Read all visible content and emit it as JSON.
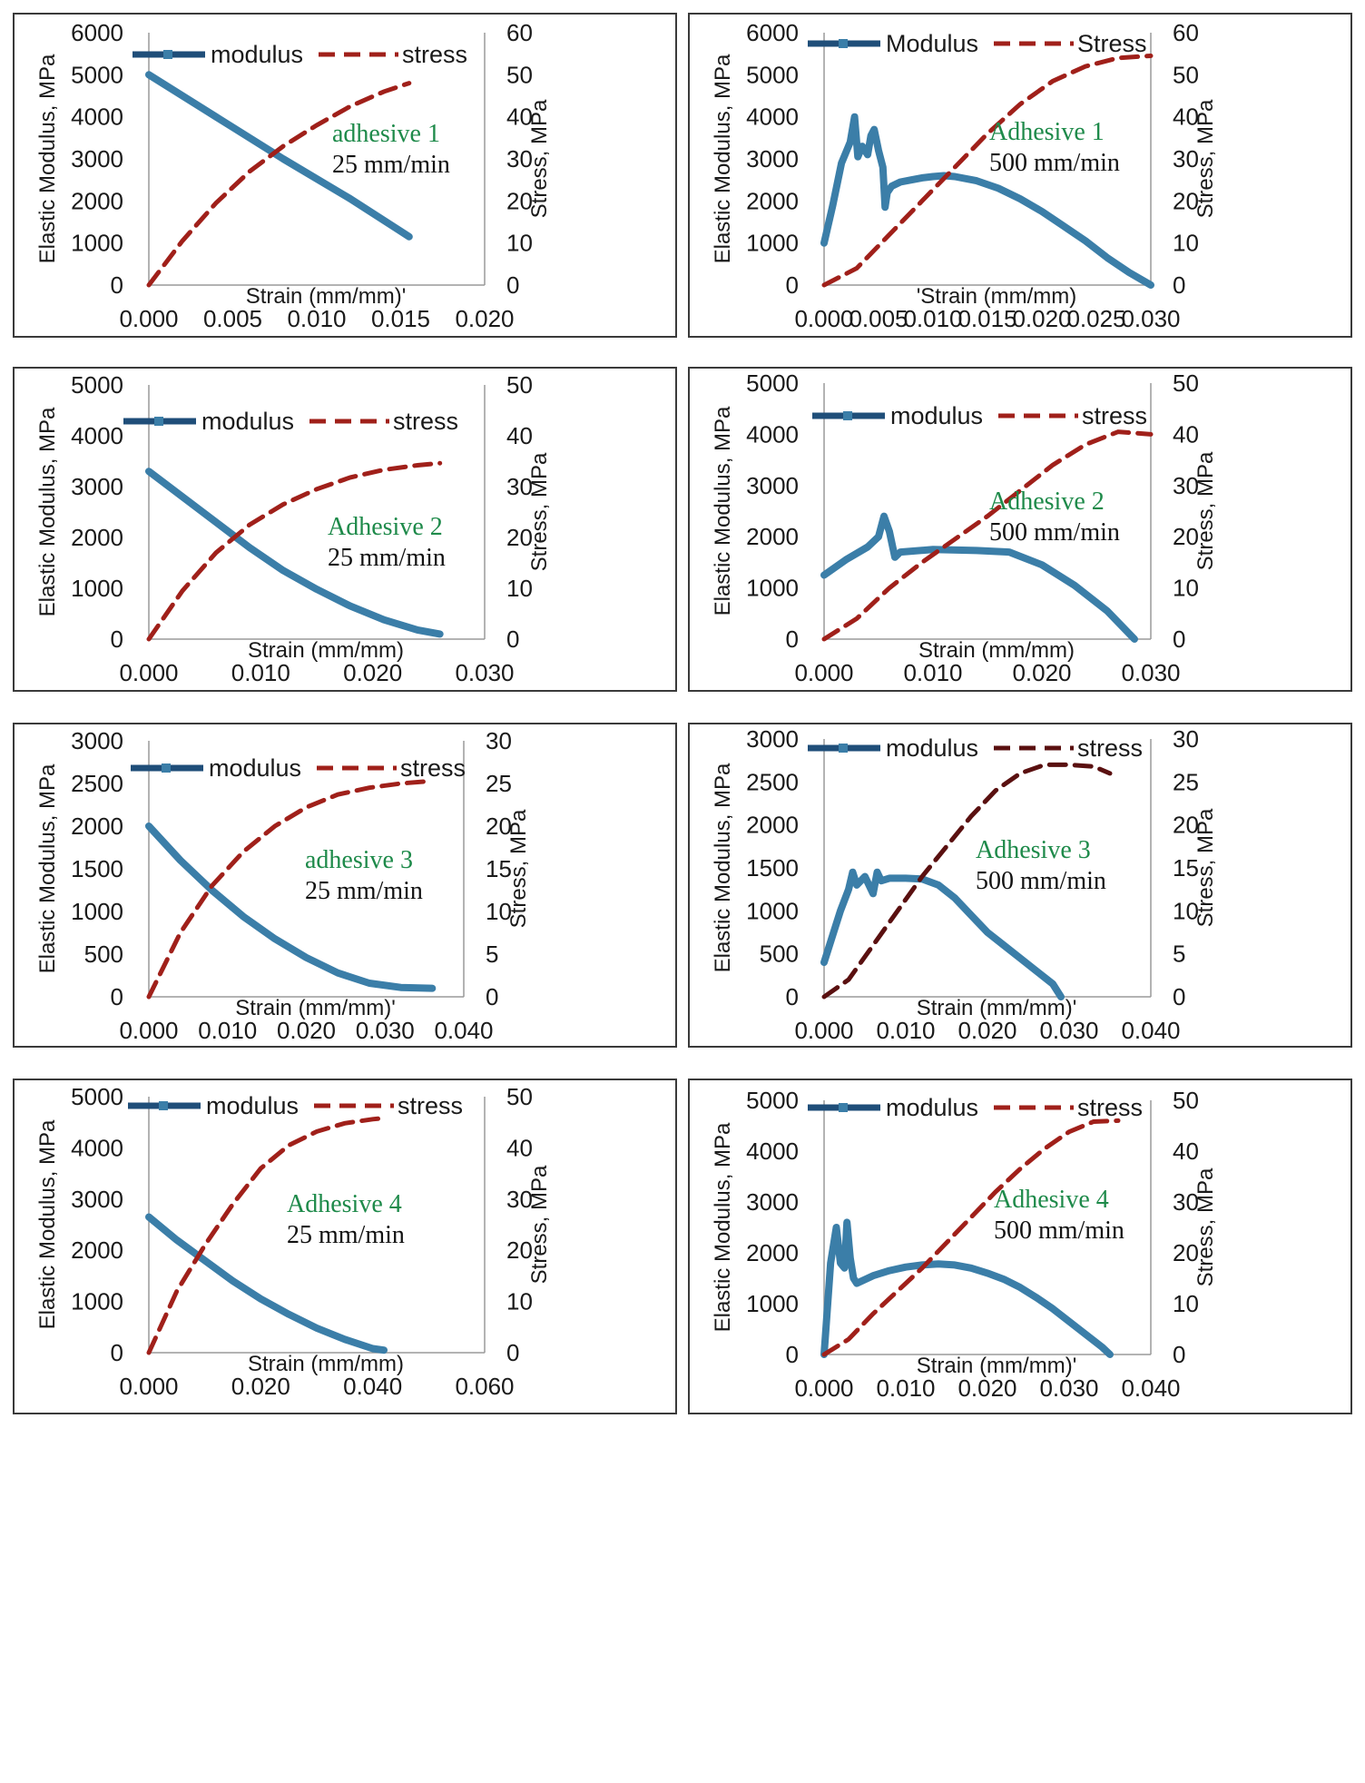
{
  "colors": {
    "modulus": "#3b7ea8",
    "modulus_dark": "#1f4e79",
    "stress": "#a0201a",
    "stress_alt": "#5a1010",
    "adhesive_label": "#1e8a4a"
  },
  "chart_data": [
    {
      "type": "line",
      "title": "adhesive 1",
      "subtitle": "25 mm/min",
      "xlabel": "Strain (mm/mm)'",
      "ylabel": "Elastic Modulus, MPa",
      "y2label": "Stress, MPa",
      "xlim": [
        0,
        0.02
      ],
      "xticks": [
        "0.000",
        "0.005",
        "0.010",
        "0.015",
        "0.020"
      ],
      "ylim": [
        0,
        6000
      ],
      "yticks": [
        "0",
        "1000",
        "2000",
        "3000",
        "4000",
        "5000",
        "6000"
      ],
      "y2lim": [
        0,
        60
      ],
      "y2ticks": [
        "0",
        "10",
        "20",
        "30",
        "40",
        "50",
        "60"
      ],
      "legend": [
        "modulus",
        "stress"
      ],
      "series": [
        {
          "name": "modulus",
          "axis": "left",
          "x": [
            0,
            0.004,
            0.008,
            0.012,
            0.0155
          ],
          "y": [
            5000,
            4000,
            3000,
            2050,
            1150
          ]
        },
        {
          "name": "stress",
          "axis": "right",
          "x": [
            0,
            0.002,
            0.004,
            0.006,
            0.008,
            0.01,
            0.012,
            0.014,
            0.0155
          ],
          "y": [
            0,
            10.5,
            19.5,
            27,
            33,
            38,
            42.5,
            46,
            48
          ]
        }
      ]
    },
    {
      "type": "line",
      "title": "Adhesive 1",
      "subtitle": "500 mm/min",
      "xlabel": "'Strain (mm/mm)",
      "ylabel": "Elastic Modulus, MPa",
      "y2label": "Stress, MPa",
      "xlim": [
        0,
        0.03
      ],
      "xticks": [
        "0.000",
        "0.005",
        "0.010",
        "0.015",
        "0.020",
        "0.025",
        "0.030"
      ],
      "ylim": [
        0,
        6000
      ],
      "yticks": [
        "0",
        "1000",
        "2000",
        "3000",
        "4000",
        "5000",
        "6000"
      ],
      "y2lim": [
        0,
        60
      ],
      "y2ticks": [
        "0",
        "10",
        "20",
        "30",
        "40",
        "50",
        "60"
      ],
      "legend": [
        "Modulus",
        "Stress"
      ],
      "series": [
        {
          "name": "Modulus",
          "axis": "left",
          "x": [
            0,
            0.0008,
            0.0016,
            0.0024,
            0.0028,
            0.0031,
            0.0035,
            0.004,
            0.0043,
            0.0046,
            0.005,
            0.0054,
            0.0056,
            0.0058,
            0.0062,
            0.007,
            0.008,
            0.009,
            0.01,
            0.011,
            0.012,
            0.014,
            0.016,
            0.018,
            0.02,
            0.022,
            0.024,
            0.026,
            0.028,
            0.03
          ],
          "y": [
            1000,
            1900,
            2900,
            3400,
            4000,
            3050,
            3300,
            3100,
            3550,
            3700,
            3200,
            2800,
            1850,
            2200,
            2350,
            2450,
            2500,
            2550,
            2580,
            2600,
            2580,
            2480,
            2300,
            2050,
            1750,
            1400,
            1050,
            650,
            300,
            0
          ]
        },
        {
          "name": "Stress",
          "axis": "right",
          "x": [
            0,
            0.003,
            0.006,
            0.009,
            0.012,
            0.015,
            0.018,
            0.021,
            0.024,
            0.027,
            0.03
          ],
          "y": [
            0,
            4,
            12,
            20,
            28,
            36,
            43,
            48.5,
            52,
            54,
            54.5
          ]
        }
      ]
    },
    {
      "type": "line",
      "title": "Adhesive 2",
      "subtitle": "25 mm/min",
      "xlabel": "Strain (mm/mm)",
      "ylabel": "Elastic Modulus, MPa",
      "y2label": "Stress, MPa",
      "xlim": [
        0,
        0.03
      ],
      "xticks": [
        "0.000",
        "0.010",
        "0.020",
        "0.030"
      ],
      "ylim": [
        0,
        5000
      ],
      "yticks": [
        "0",
        "1000",
        "2000",
        "3000",
        "4000",
        "5000"
      ],
      "y2lim": [
        0,
        50
      ],
      "y2ticks": [
        "0",
        "10",
        "20",
        "30",
        "40",
        "50"
      ],
      "legend": [
        "modulus",
        "stress"
      ],
      "series": [
        {
          "name": "modulus",
          "axis": "left",
          "x": [
            0,
            0.003,
            0.006,
            0.009,
            0.012,
            0.015,
            0.018,
            0.021,
            0.024,
            0.026
          ],
          "y": [
            3300,
            2800,
            2300,
            1800,
            1350,
            980,
            650,
            380,
            180,
            100
          ]
        },
        {
          "name": "stress",
          "axis": "right",
          "x": [
            0,
            0.003,
            0.006,
            0.009,
            0.012,
            0.015,
            0.018,
            0.021,
            0.024,
            0.026
          ],
          "y": [
            0,
            9.5,
            17,
            22.5,
            26.5,
            29.5,
            31.8,
            33.3,
            34.2,
            34.6
          ]
        }
      ]
    },
    {
      "type": "line",
      "title": "Adhesive 2",
      "subtitle": "500 mm/min",
      "xlabel": "Strain (mm/mm)",
      "ylabel": "Elastic Modulus, MPa",
      "y2label": "Stress, MPa",
      "xlim": [
        0,
        0.03
      ],
      "xticks": [
        "0.000",
        "0.010",
        "0.020",
        "0.030"
      ],
      "ylim": [
        0,
        5000
      ],
      "yticks": [
        "0",
        "1000",
        "2000",
        "3000",
        "4000",
        "5000"
      ],
      "y2lim": [
        0,
        50
      ],
      "y2ticks": [
        "0",
        "10",
        "20",
        "30",
        "40",
        "50"
      ],
      "legend": [
        "modulus",
        "stress"
      ],
      "series": [
        {
          "name": "modulus",
          "axis": "left",
          "x": [
            0,
            0.002,
            0.004,
            0.005,
            0.0055,
            0.006,
            0.0065,
            0.007,
            0.01,
            0.014,
            0.017,
            0.02,
            0.023,
            0.026,
            0.0285
          ],
          "y": [
            1250,
            1550,
            1800,
            2000,
            2400,
            2100,
            1600,
            1700,
            1750,
            1730,
            1700,
            1450,
            1050,
            550,
            0
          ]
        },
        {
          "name": "stress",
          "axis": "right",
          "x": [
            0,
            0.003,
            0.006,
            0.009,
            0.012,
            0.015,
            0.018,
            0.021,
            0.024,
            0.027,
            0.03
          ],
          "y": [
            0,
            4,
            10,
            15,
            19.5,
            24,
            29,
            34,
            38,
            40.5,
            40
          ]
        }
      ]
    },
    {
      "type": "line",
      "title": "adhesive 3",
      "subtitle": "25 mm/min",
      "xlabel": "Strain (mm/mm)'",
      "ylabel": "Elastic Modulus, MPa",
      "y2label": "Stress, MPa",
      "xlim": [
        0,
        0.04
      ],
      "xticks": [
        "0.000",
        "0.010",
        "0.020",
        "0.030",
        "0.040"
      ],
      "ylim": [
        0,
        3000
      ],
      "yticks": [
        "0",
        "500",
        "1000",
        "1500",
        "2000",
        "2500",
        "3000"
      ],
      "y2lim": [
        0,
        30
      ],
      "y2ticks": [
        "0",
        "5",
        "10",
        "15",
        "20",
        "25",
        "30"
      ],
      "legend": [
        "modulus",
        "stress"
      ],
      "series": [
        {
          "name": "modulus",
          "axis": "left",
          "x": [
            0,
            0.004,
            0.008,
            0.012,
            0.016,
            0.02,
            0.024,
            0.028,
            0.032,
            0.036
          ],
          "y": [
            2000,
            1600,
            1250,
            940,
            680,
            460,
            280,
            160,
            110,
            100
          ]
        },
        {
          "name": "stress",
          "axis": "right",
          "x": [
            0,
            0.004,
            0.008,
            0.012,
            0.016,
            0.02,
            0.024,
            0.028,
            0.032,
            0.036
          ],
          "y": [
            0,
            7.5,
            13,
            17,
            20,
            22.2,
            23.7,
            24.5,
            25,
            25.3
          ]
        }
      ]
    },
    {
      "type": "line",
      "title": "Adhesive 3",
      "subtitle": "500 mm/min",
      "xlabel": "Strain (mm/mm)'",
      "ylabel": "Elastic Modulus, MPa",
      "y2label": "Stress, MPa",
      "xlim": [
        0,
        0.04
      ],
      "xticks": [
        "0.000",
        "0.010",
        "0.020",
        "0.030",
        "0.040"
      ],
      "ylim": [
        0,
        3000
      ],
      "yticks": [
        "0",
        "500",
        "1000",
        "1500",
        "2000",
        "2500",
        "3000"
      ],
      "y2lim": [
        0,
        30
      ],
      "y2ticks": [
        "0",
        "5",
        "10",
        "15",
        "20",
        "25",
        "30"
      ],
      "legend": [
        "modulus",
        "stress"
      ],
      "series": [
        {
          "name": "modulus",
          "axis": "left",
          "x": [
            0,
            0.001,
            0.002,
            0.003,
            0.0035,
            0.004,
            0.005,
            0.006,
            0.0065,
            0.007,
            0.008,
            0.01,
            0.012,
            0.014,
            0.016,
            0.018,
            0.02,
            0.022,
            0.024,
            0.026,
            0.028,
            0.029
          ],
          "y": [
            400,
            700,
            1000,
            1250,
            1450,
            1300,
            1400,
            1200,
            1450,
            1350,
            1380,
            1380,
            1370,
            1300,
            1150,
            950,
            750,
            600,
            450,
            300,
            150,
            0
          ]
        },
        {
          "name": "stress",
          "axis": "right",
          "x": [
            0,
            0.003,
            0.006,
            0.009,
            0.012,
            0.015,
            0.018,
            0.021,
            0.024,
            0.027,
            0.03,
            0.033,
            0.035
          ],
          "y": [
            0,
            2,
            6,
            10,
            14,
            17.5,
            21,
            24,
            26,
            27,
            27,
            26.8,
            26
          ]
        }
      ]
    },
    {
      "type": "line",
      "title": "Adhesive 4",
      "subtitle": "25 mm/min",
      "xlabel": "Strain (mm/mm)",
      "ylabel": "Elastic Modulus, MPa",
      "y2label": "Stress, MPa",
      "xlim": [
        0,
        0.06
      ],
      "xticks": [
        "0.000",
        "0.020",
        "0.040",
        "0.060"
      ],
      "ylim": [
        0,
        5000
      ],
      "yticks": [
        "0",
        "1000",
        "2000",
        "3000",
        "4000",
        "5000"
      ],
      "y2lim": [
        0,
        50
      ],
      "y2ticks": [
        "0",
        "10",
        "20",
        "30",
        "40",
        "50"
      ],
      "legend": [
        "modulus",
        "stress"
      ],
      "series": [
        {
          "name": "modulus",
          "axis": "left",
          "x": [
            0,
            0.005,
            0.01,
            0.015,
            0.02,
            0.025,
            0.03,
            0.035,
            0.04,
            0.042
          ],
          "y": [
            2650,
            2200,
            1800,
            1400,
            1050,
            750,
            480,
            260,
            80,
            50
          ]
        },
        {
          "name": "stress",
          "axis": "right",
          "x": [
            0,
            0.005,
            0.01,
            0.015,
            0.02,
            0.025,
            0.03,
            0.035,
            0.04,
            0.042
          ],
          "y": [
            0,
            12,
            21,
            29,
            36,
            40.5,
            43.2,
            44.8,
            45.6,
            45.8
          ]
        }
      ]
    },
    {
      "type": "line",
      "title": "Adhesive 4",
      "subtitle": "500 mm/min",
      "xlabel": "Strain (mm/mm)'",
      "ylabel": "Elastic Modulus, MPa",
      "y2label": "Stress, MPa",
      "xlim": [
        0,
        0.04
      ],
      "xticks": [
        "0.000",
        "0.010",
        "0.020",
        "0.030",
        "0.040"
      ],
      "ylim": [
        0,
        5000
      ],
      "yticks": [
        "0",
        "1000",
        "2000",
        "3000",
        "4000",
        "5000"
      ],
      "y2lim": [
        0,
        50
      ],
      "y2ticks": [
        "0",
        "10",
        "20",
        "30",
        "40",
        "50"
      ],
      "legend": [
        "modulus",
        "stress"
      ],
      "series": [
        {
          "name": "modulus",
          "axis": "left",
          "x": [
            0,
            0.0008,
            0.0015,
            0.002,
            0.0025,
            0.0028,
            0.0032,
            0.0036,
            0.004,
            0.006,
            0.008,
            0.01,
            0.012,
            0.014,
            0.016,
            0.018,
            0.02,
            0.022,
            0.024,
            0.026,
            0.028,
            0.03,
            0.032,
            0.034,
            0.035
          ],
          "y": [
            0,
            1800,
            2500,
            1800,
            1700,
            2600,
            1900,
            1500,
            1400,
            1550,
            1650,
            1720,
            1760,
            1780,
            1760,
            1700,
            1600,
            1480,
            1320,
            1120,
            900,
            650,
            400,
            150,
            0
          ]
        },
        {
          "name": "stress",
          "axis": "right",
          "x": [
            0,
            0.003,
            0.006,
            0.009,
            0.012,
            0.015,
            0.018,
            0.021,
            0.024,
            0.027,
            0.03,
            0.033,
            0.036
          ],
          "y": [
            0,
            3,
            8,
            12.5,
            17,
            22,
            27,
            32,
            36.5,
            40.5,
            43.8,
            45.8,
            46
          ]
        }
      ]
    }
  ]
}
